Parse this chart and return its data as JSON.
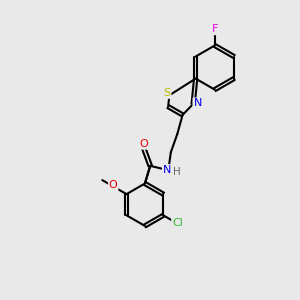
{
  "background_color": "#e9e9e9",
  "bond_color": "#000000",
  "atom_colors": {
    "F": "#ee00ee",
    "S": "#bbbb00",
    "N": "#0000ee",
    "O": "#ee0000",
    "Cl": "#33bb33",
    "H": "#666666",
    "C": "#000000"
  },
  "bond_width": 1.5,
  "dbo": 0.055,
  "figsize": [
    3.0,
    3.0
  ],
  "dpi": 100,
  "xlim": [
    0.0,
    10.0
  ],
  "ylim": [
    0.5,
    10.5
  ]
}
